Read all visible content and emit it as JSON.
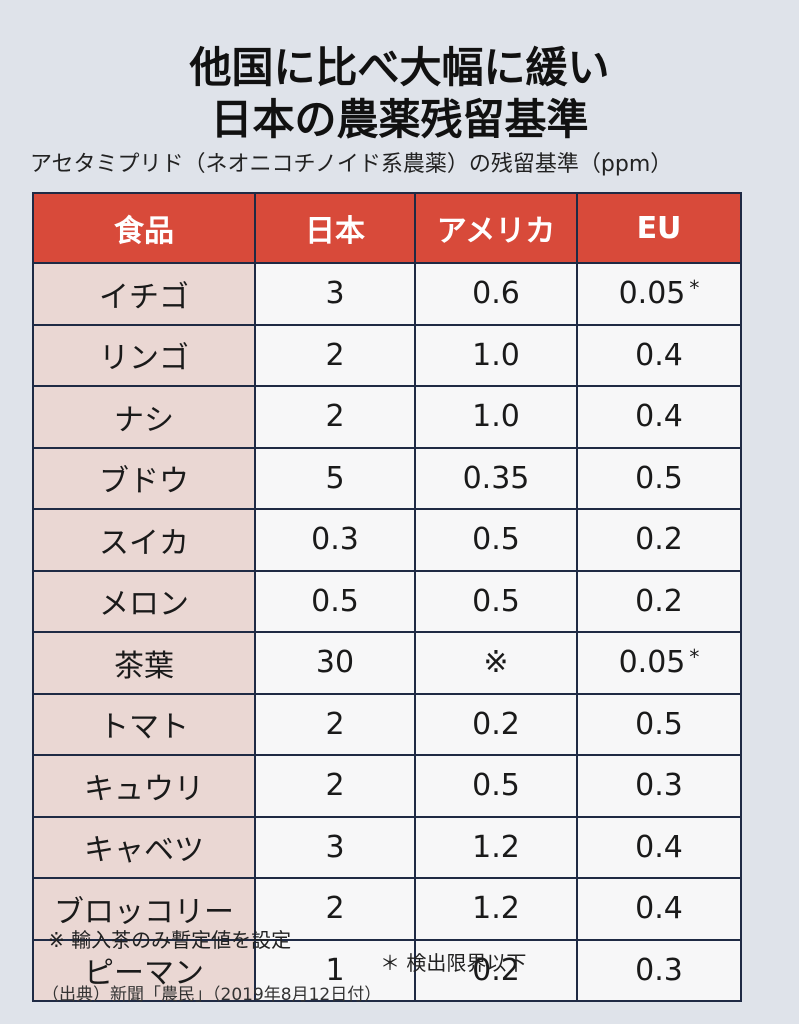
{
  "title": {
    "line1": "他国に比べ大幅に緩い",
    "line2": "日本の農薬残留基準"
  },
  "subtitle": "アセタミプリド（ネオニコチノイド系農薬）の残留基準（ppm）",
  "table": {
    "headers": [
      "食品",
      "日本",
      "アメリカ",
      "EU"
    ],
    "rows": [
      {
        "food": "イチゴ",
        "jp": "3",
        "us": "0.6",
        "eu": "0.05",
        "eu_mark": "*"
      },
      {
        "food": "リンゴ",
        "jp": "2",
        "us": "1.0",
        "eu": "0.4",
        "eu_mark": ""
      },
      {
        "food": "ナシ",
        "jp": "2",
        "us": "1.0",
        "eu": "0.4",
        "eu_mark": ""
      },
      {
        "food": "ブドウ",
        "jp": "5",
        "us": "0.35",
        "eu": "0.5",
        "eu_mark": ""
      },
      {
        "food": "スイカ",
        "jp": "0.3",
        "us": "0.5",
        "eu": "0.2",
        "eu_mark": ""
      },
      {
        "food": "メロン",
        "jp": "0.5",
        "us": "0.5",
        "eu": "0.2",
        "eu_mark": ""
      },
      {
        "food": "茶葉",
        "jp": "30",
        "us": "※",
        "eu": "0.05",
        "eu_mark": "*"
      },
      {
        "food": "トマト",
        "jp": "2",
        "us": "0.2",
        "eu": "0.5",
        "eu_mark": ""
      },
      {
        "food": "キュウリ",
        "jp": "2",
        "us": "0.5",
        "eu": "0.3",
        "eu_mark": ""
      },
      {
        "food": "キャベツ",
        "jp": "3",
        "us": "1.2",
        "eu": "0.4",
        "eu_mark": ""
      },
      {
        "food": "ブロッコリー",
        "jp": "2",
        "us": "1.2",
        "eu": "0.4",
        "eu_mark": ""
      },
      {
        "food": "ピーマン",
        "jp": "1",
        "us": "0.2",
        "eu": "0.3",
        "eu_mark": ""
      }
    ]
  },
  "footnotes": {
    "note1": "※ 輸入茶のみ暫定値を設定",
    "note2": "＊ 検出限界以下",
    "source": "（出典）新聞「農民」（2019年8月12日付）"
  }
}
